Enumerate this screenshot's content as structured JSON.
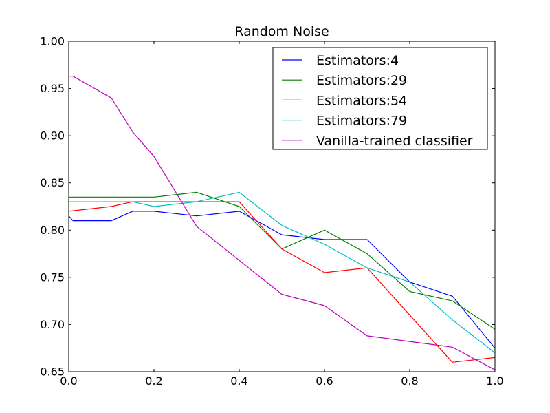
{
  "chart_data": {
    "type": "line",
    "title": "Random Noise",
    "xlabel": "",
    "ylabel": "",
    "xlim": [
      0.0,
      1.0
    ],
    "ylim": [
      0.65,
      1.0
    ],
    "x_ticks": [
      "0.0",
      "0.2",
      "0.4",
      "0.6",
      "0.8",
      "1.0"
    ],
    "y_ticks": [
      "0.65",
      "0.70",
      "0.75",
      "0.80",
      "0.85",
      "0.90",
      "0.95",
      "1.00"
    ],
    "grid": false,
    "legend_position": "top-right",
    "series": [
      {
        "name": "Estimators:4",
        "color": "#0000ff",
        "points": [
          [
            0.0,
            0.815
          ],
          [
            0.01,
            0.81
          ],
          [
            0.1,
            0.81
          ],
          [
            0.15,
            0.82
          ],
          [
            0.2,
            0.82
          ],
          [
            0.3,
            0.815
          ],
          [
            0.4,
            0.82
          ],
          [
            0.5,
            0.795
          ],
          [
            0.6,
            0.79
          ],
          [
            0.7,
            0.79
          ],
          [
            0.8,
            0.745
          ],
          [
            0.9,
            0.73
          ],
          [
            1.0,
            0.675
          ]
        ]
      },
      {
        "name": "Estimators:29",
        "color": "#008000",
        "points": [
          [
            0.0,
            0.835
          ],
          [
            0.1,
            0.835
          ],
          [
            0.2,
            0.835
          ],
          [
            0.3,
            0.84
          ],
          [
            0.4,
            0.825
          ],
          [
            0.5,
            0.78
          ],
          [
            0.6,
            0.8
          ],
          [
            0.7,
            0.775
          ],
          [
            0.8,
            0.735
          ],
          [
            0.9,
            0.725
          ],
          [
            1.0,
            0.695
          ]
        ]
      },
      {
        "name": "Estimators:54",
        "color": "#ff0000",
        "points": [
          [
            0.0,
            0.82
          ],
          [
            0.1,
            0.825
          ],
          [
            0.15,
            0.83
          ],
          [
            0.2,
            0.83
          ],
          [
            0.3,
            0.83
          ],
          [
            0.4,
            0.83
          ],
          [
            0.5,
            0.78
          ],
          [
            0.6,
            0.755
          ],
          [
            0.7,
            0.76
          ],
          [
            0.8,
            0.71
          ],
          [
            0.9,
            0.66
          ],
          [
            1.0,
            0.665
          ]
        ]
      },
      {
        "name": "Estimators:79",
        "color": "#00bfbf",
        "points": [
          [
            0.0,
            0.83
          ],
          [
            0.1,
            0.83
          ],
          [
            0.15,
            0.83
          ],
          [
            0.2,
            0.825
          ],
          [
            0.3,
            0.83
          ],
          [
            0.4,
            0.84
          ],
          [
            0.5,
            0.805
          ],
          [
            0.6,
            0.785
          ],
          [
            0.7,
            0.76
          ],
          [
            0.8,
            0.745
          ],
          [
            0.9,
            0.705
          ],
          [
            1.0,
            0.67
          ]
        ]
      },
      {
        "name": "Vanilla-trained classifier",
        "color": "#bf00bf",
        "points": [
          [
            0.0,
            0.963
          ],
          [
            0.01,
            0.963
          ],
          [
            0.1,
            0.94
          ],
          [
            0.15,
            0.904
          ],
          [
            0.2,
            0.878
          ],
          [
            0.3,
            0.804
          ],
          [
            0.4,
            0.768
          ],
          [
            0.5,
            0.732
          ],
          [
            0.6,
            0.72
          ],
          [
            0.7,
            0.688
          ],
          [
            0.8,
            0.682
          ],
          [
            0.9,
            0.676
          ],
          [
            1.0,
            0.652
          ]
        ]
      }
    ]
  }
}
